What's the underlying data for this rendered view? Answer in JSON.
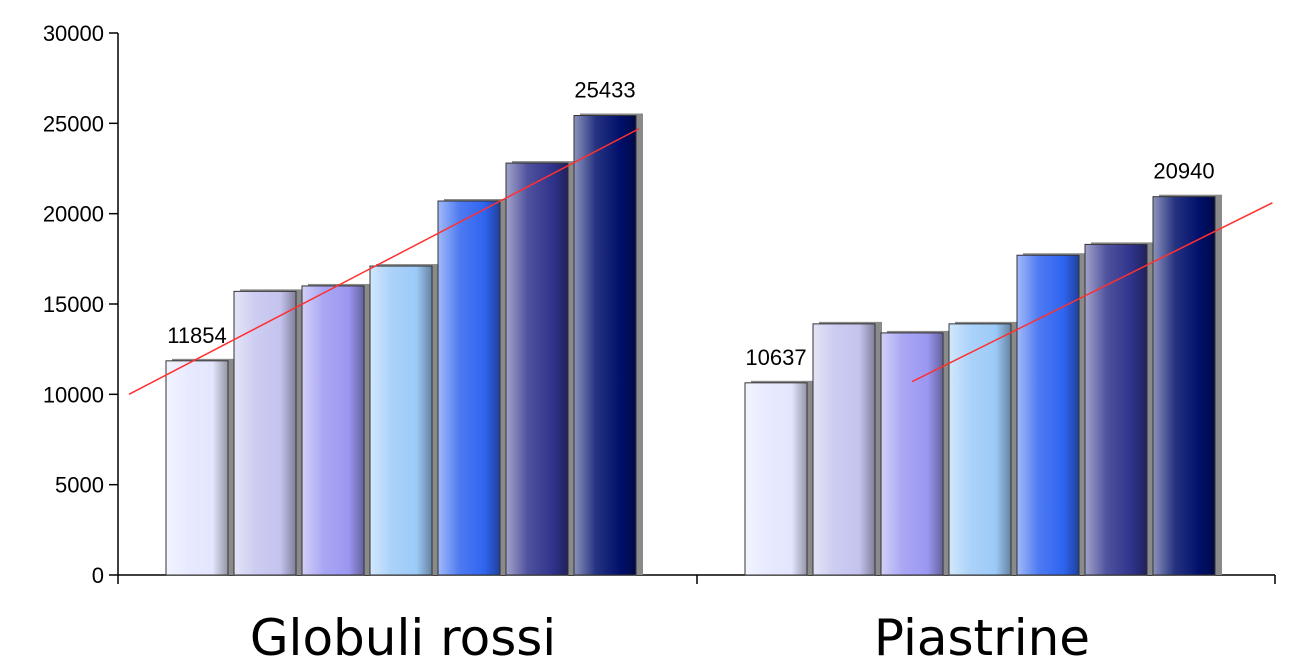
{
  "chart_data": {
    "type": "bar",
    "title": "",
    "xlabel": "",
    "ylabel": "",
    "ylim": [
      0,
      30000
    ],
    "yticks": [
      0,
      5000,
      10000,
      15000,
      20000,
      25000,
      30000
    ],
    "ytick_labels": [
      "0",
      "5000",
      "10000",
      "15000",
      "20000",
      "25000",
      "30000"
    ],
    "grid": false,
    "legend": "none",
    "categories": [
      "Globuli rossi",
      "Piastrine"
    ],
    "series_colors": [
      "#e4e6ff",
      "#c4c3ee",
      "#9b97f2",
      "#9ccaf8",
      "#2f64f0",
      "#30338c",
      "#000f6b"
    ],
    "groups": [
      {
        "name": "Globuli rossi",
        "values": [
          11854,
          15700,
          16000,
          17100,
          20700,
          22800,
          25433
        ],
        "labeled": [
          {
            "index": 0,
            "text": "11854"
          },
          {
            "index": 6,
            "text": "25433"
          }
        ],
        "trendline": {
          "color": "#ff3030",
          "x0": -1.0,
          "y0": 10000,
          "x1": 6.5,
          "y1": 24700
        }
      },
      {
        "name": "Piastrine",
        "values": [
          10637,
          13900,
          13400,
          13900,
          17700,
          18300,
          20940
        ],
        "labeled": [
          {
            "index": 0,
            "text": "10637"
          },
          {
            "index": 6,
            "text": "20940"
          }
        ],
        "trendline": {
          "color": "#ff3030",
          "x0": 2.0,
          "y0": 10700,
          "x1": 7.3,
          "y1": 20600
        }
      }
    ]
  }
}
